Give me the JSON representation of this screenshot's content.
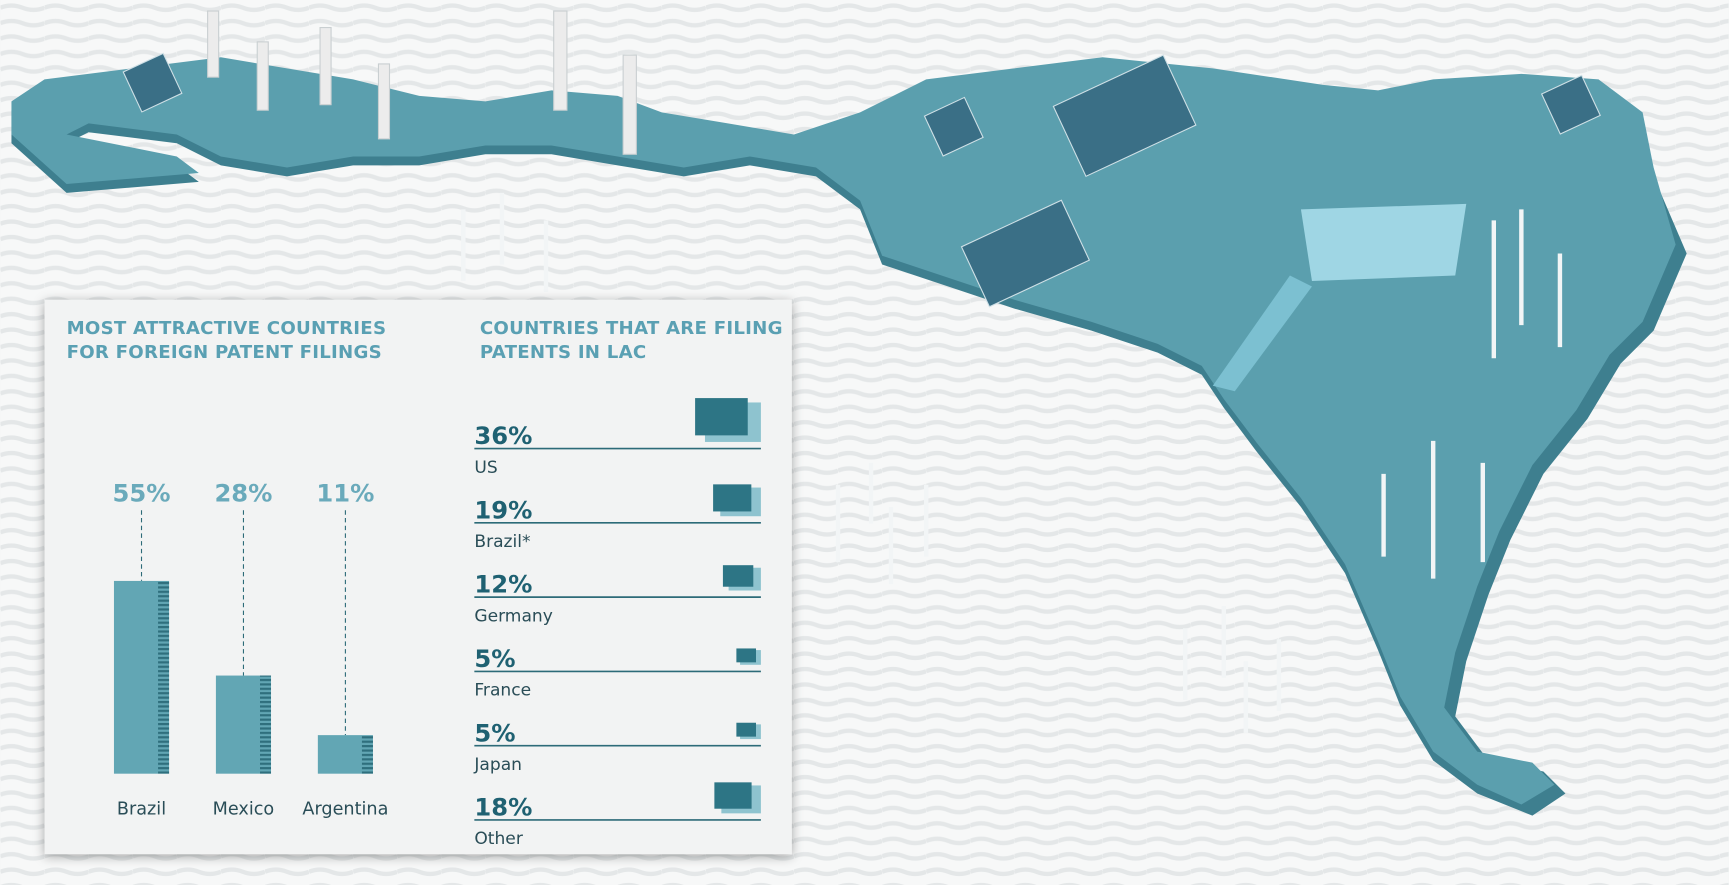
{
  "chart_data": [
    {
      "type": "bar",
      "title": "MOST ATTRACTIVE COUNTRIES FOR FOREIGN PATENT FILINGS",
      "categories": [
        "Brazil",
        "Mexico",
        "Argentina"
      ],
      "values": [
        55,
        28,
        11
      ],
      "value_labels": [
        "55%",
        "28%",
        "11%"
      ],
      "color": "#62a6b4"
    },
    {
      "type": "pictogram",
      "title": "COUNTRIES THAT ARE FILING PATENTS IN LAC",
      "categories": [
        "US",
        "Brazil*",
        "Germany",
        "France",
        "Japan",
        "Other"
      ],
      "values": [
        36,
        19,
        12,
        5,
        5,
        18
      ],
      "value_labels": [
        "36%",
        "19%",
        "12%",
        "5%",
        "5%",
        "18%"
      ],
      "color": "#2d7585"
    }
  ]
}
